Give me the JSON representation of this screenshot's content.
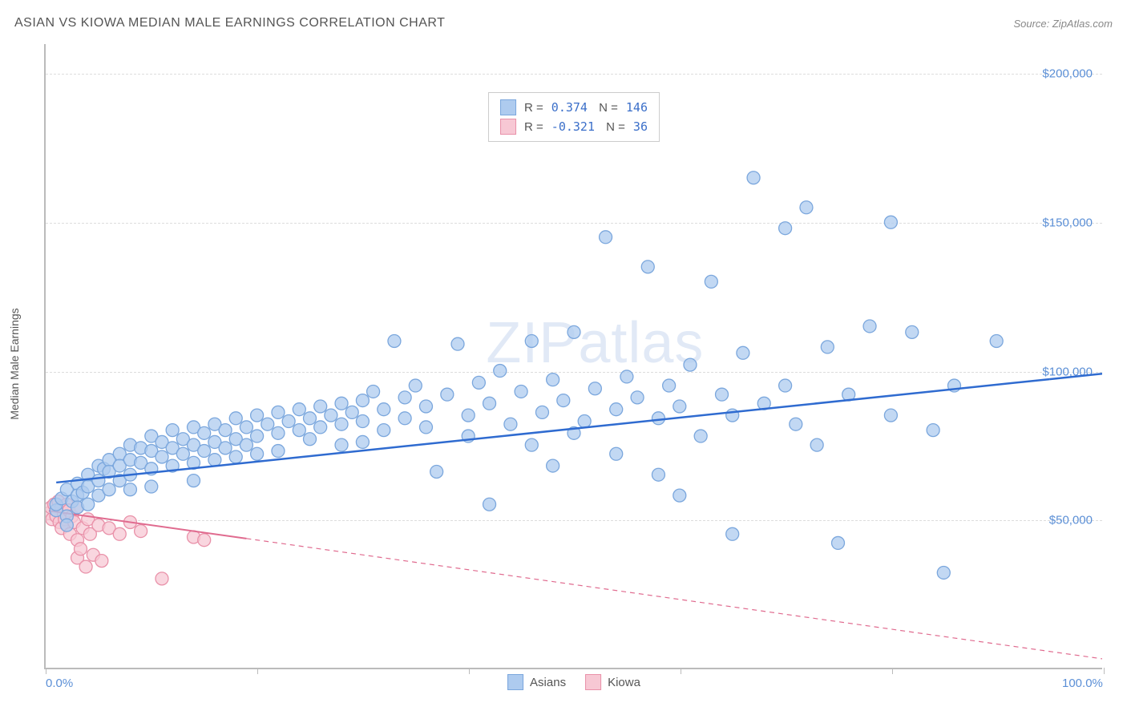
{
  "header": {
    "title": "ASIAN VS KIOWA MEDIAN MALE EARNINGS CORRELATION CHART",
    "source_prefix": "Source: ",
    "source": "ZipAtlas.com"
  },
  "chart": {
    "type": "scatter",
    "ylabel": "Median Male Earnings",
    "watermark": "ZIPatlas",
    "background_color": "#ffffff",
    "grid_color": "#dddddd",
    "axis_color": "#bbbbbb",
    "xlim": [
      0,
      100
    ],
    "ylim": [
      0,
      210000
    ],
    "xtick_positions": [
      0,
      20,
      40,
      60,
      80,
      100
    ],
    "xtick_labels": [
      "0.0%",
      "",
      "",
      "",
      "",
      "100.0%"
    ],
    "ytick_positions": [
      50000,
      100000,
      150000,
      200000
    ],
    "ytick_labels": [
      "$50,000",
      "$100,000",
      "$150,000",
      "$200,000"
    ],
    "tick_label_color": "#5b8fd6",
    "tick_label_fontsize": 15,
    "series": {
      "asians": {
        "label": "Asians",
        "marker_fill": "#aecbef",
        "marker_stroke": "#7ba7dd",
        "marker_radius": 8,
        "line_color": "#2f6bd0",
        "line_width": 2.5,
        "line_dash_segment": [
          100,
          0
        ],
        "R": "0.374",
        "N": "146",
        "trend": {
          "x1": 0,
          "y1": 62000,
          "x2": 100,
          "y2": 99000
        },
        "points": [
          [
            1,
            53000
          ],
          [
            1,
            55000
          ],
          [
            1.5,
            57000
          ],
          [
            2,
            60000
          ],
          [
            2,
            51000
          ],
          [
            2,
            48000
          ],
          [
            2.5,
            56000
          ],
          [
            3,
            62000
          ],
          [
            3,
            58000
          ],
          [
            3,
            54000
          ],
          [
            3.5,
            59000
          ],
          [
            4,
            65000
          ],
          [
            4,
            61000
          ],
          [
            4,
            55000
          ],
          [
            5,
            68000
          ],
          [
            5,
            63000
          ],
          [
            5,
            58000
          ],
          [
            5.5,
            67000
          ],
          [
            6,
            70000
          ],
          [
            6,
            66000
          ],
          [
            6,
            60000
          ],
          [
            7,
            72000
          ],
          [
            7,
            68000
          ],
          [
            7,
            63000
          ],
          [
            8,
            75000
          ],
          [
            8,
            70000
          ],
          [
            8,
            65000
          ],
          [
            8,
            60000
          ],
          [
            9,
            74000
          ],
          [
            9,
            69000
          ],
          [
            10,
            78000
          ],
          [
            10,
            73000
          ],
          [
            10,
            67000
          ],
          [
            10,
            61000
          ],
          [
            11,
            76000
          ],
          [
            11,
            71000
          ],
          [
            12,
            80000
          ],
          [
            12,
            74000
          ],
          [
            12,
            68000
          ],
          [
            13,
            77000
          ],
          [
            13,
            72000
          ],
          [
            14,
            81000
          ],
          [
            14,
            75000
          ],
          [
            14,
            69000
          ],
          [
            14,
            63000
          ],
          [
            15,
            79000
          ],
          [
            15,
            73000
          ],
          [
            16,
            82000
          ],
          [
            16,
            76000
          ],
          [
            16,
            70000
          ],
          [
            17,
            80000
          ],
          [
            17,
            74000
          ],
          [
            18,
            84000
          ],
          [
            18,
            77000
          ],
          [
            18,
            71000
          ],
          [
            19,
            81000
          ],
          [
            19,
            75000
          ],
          [
            20,
            85000
          ],
          [
            20,
            78000
          ],
          [
            20,
            72000
          ],
          [
            21,
            82000
          ],
          [
            22,
            86000
          ],
          [
            22,
            79000
          ],
          [
            22,
            73000
          ],
          [
            23,
            83000
          ],
          [
            24,
            87000
          ],
          [
            24,
            80000
          ],
          [
            25,
            84000
          ],
          [
            25,
            77000
          ],
          [
            26,
            88000
          ],
          [
            26,
            81000
          ],
          [
            27,
            85000
          ],
          [
            28,
            89000
          ],
          [
            28,
            82000
          ],
          [
            28,
            75000
          ],
          [
            29,
            86000
          ],
          [
            30,
            90000
          ],
          [
            30,
            83000
          ],
          [
            30,
            76000
          ],
          [
            31,
            93000
          ],
          [
            32,
            87000
          ],
          [
            32,
            80000
          ],
          [
            33,
            110000
          ],
          [
            34,
            91000
          ],
          [
            34,
            84000
          ],
          [
            35,
            95000
          ],
          [
            36,
            88000
          ],
          [
            36,
            81000
          ],
          [
            37,
            66000
          ],
          [
            38,
            92000
          ],
          [
            39,
            109000
          ],
          [
            40,
            85000
          ],
          [
            40,
            78000
          ],
          [
            41,
            96000
          ],
          [
            42,
            89000
          ],
          [
            42,
            55000
          ],
          [
            43,
            100000
          ],
          [
            44,
            82000
          ],
          [
            45,
            93000
          ],
          [
            46,
            75000
          ],
          [
            46,
            110000
          ],
          [
            47,
            86000
          ],
          [
            48,
            97000
          ],
          [
            48,
            68000
          ],
          [
            49,
            90000
          ],
          [
            50,
            79000
          ],
          [
            50,
            113000
          ],
          [
            51,
            83000
          ],
          [
            52,
            94000
          ],
          [
            53,
            145000
          ],
          [
            54,
            87000
          ],
          [
            54,
            72000
          ],
          [
            55,
            98000
          ],
          [
            56,
            91000
          ],
          [
            57,
            135000
          ],
          [
            58,
            84000
          ],
          [
            58,
            65000
          ],
          [
            59,
            95000
          ],
          [
            60,
            88000
          ],
          [
            60,
            58000
          ],
          [
            61,
            102000
          ],
          [
            62,
            78000
          ],
          [
            63,
            130000
          ],
          [
            64,
            92000
          ],
          [
            65,
            85000
          ],
          [
            65,
            45000
          ],
          [
            66,
            106000
          ],
          [
            67,
            165000
          ],
          [
            68,
            89000
          ],
          [
            70,
            148000
          ],
          [
            70,
            95000
          ],
          [
            71,
            82000
          ],
          [
            72,
            155000
          ],
          [
            73,
            75000
          ],
          [
            74,
            108000
          ],
          [
            75,
            42000
          ],
          [
            76,
            92000
          ],
          [
            78,
            115000
          ],
          [
            80,
            150000
          ],
          [
            80,
            85000
          ],
          [
            82,
            113000
          ],
          [
            84,
            80000
          ],
          [
            85,
            32000
          ],
          [
            86,
            95000
          ],
          [
            90,
            110000
          ]
        ]
      },
      "kiowa": {
        "label": "Kiowa",
        "marker_fill": "#f7c8d4",
        "marker_stroke": "#e991a9",
        "marker_radius": 8,
        "line_color": "#e06b8f",
        "line_width": 2,
        "line_dash_segment": [
          19,
          100
        ],
        "R": "-0.321",
        "N": "36",
        "trend": {
          "x1": 0,
          "y1": 53000,
          "x2": 100,
          "y2": 3000
        },
        "points": [
          [
            0.3,
            52000
          ],
          [
            0.5,
            54000
          ],
          [
            0.6,
            50000
          ],
          [
            0.8,
            55000
          ],
          [
            1,
            53000
          ],
          [
            1,
            51000
          ],
          [
            1.2,
            56000
          ],
          [
            1.3,
            49000
          ],
          [
            1.5,
            54000
          ],
          [
            1.5,
            47000
          ],
          [
            1.7,
            52000
          ],
          [
            1.8,
            50000
          ],
          [
            2,
            55000
          ],
          [
            2,
            48000
          ],
          [
            2.2,
            53000
          ],
          [
            2.3,
            45000
          ],
          [
            2.5,
            51000
          ],
          [
            2.7,
            49000
          ],
          [
            3,
            54000
          ],
          [
            3,
            43000
          ],
          [
            3,
            37000
          ],
          [
            3.3,
            40000
          ],
          [
            3.5,
            47000
          ],
          [
            3.8,
            34000
          ],
          [
            4,
            50000
          ],
          [
            4.2,
            45000
          ],
          [
            4.5,
            38000
          ],
          [
            5,
            48000
          ],
          [
            5.3,
            36000
          ],
          [
            6,
            47000
          ],
          [
            7,
            45000
          ],
          [
            8,
            49000
          ],
          [
            9,
            46000
          ],
          [
            11,
            30000
          ],
          [
            14,
            44000
          ],
          [
            15,
            43000
          ]
        ]
      }
    }
  },
  "legend_bottom": {
    "items": [
      "asians",
      "kiowa"
    ]
  }
}
